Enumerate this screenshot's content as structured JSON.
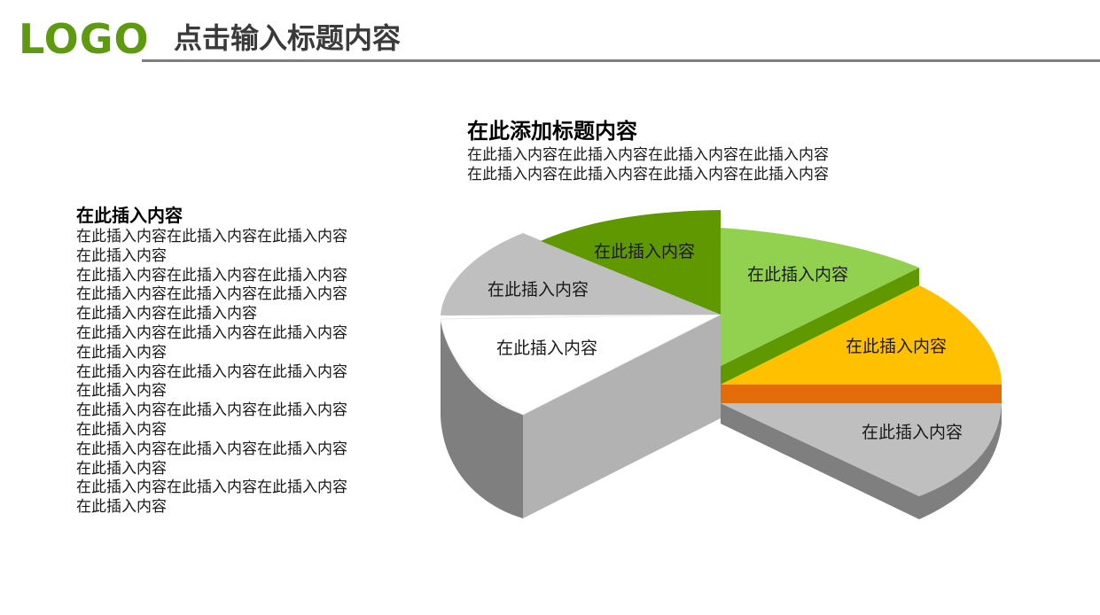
{
  "header": {
    "logo": "LOGO",
    "title": "点击输入标题内容"
  },
  "left": {
    "title": "在此插入内容",
    "lines": [
      "在此插入内容在此插入内容在此插入内容",
      "在此插入内容",
      "在此插入内容在此插入内容在此插入内容",
      "在此插入内容在此插入内容在此插入内容",
      "在此插入内容在此插入内容",
      "在此插入内容在此插入内容在此插入内容",
      "在此插入内容",
      "在此插入内容在此插入内容在此插入内容",
      "在此插入内容",
      "在此插入内容在此插入内容在此插入内容",
      "在此插入内容",
      "在此插入内容在此插入内容在此插入内容",
      "在此插入内容",
      "在此插入内容在此插入内容在此插入内容",
      "在此插入内容"
    ]
  },
  "top": {
    "title": "在此添加标题内容",
    "lines": [
      "在此插入内容在此插入内容在此插入内容在此插入内容",
      "在此插入内容在此插入内容在此插入内容在此插入内容"
    ]
  },
  "pie": {
    "labels": {
      "dark_green": "在此插入内容",
      "light_green": "在此插入内容",
      "gray_top": "在此插入内容",
      "white": "在此插入内容",
      "yellow": "在此插入内容",
      "gray_right": "在此插入内容"
    },
    "colors": {
      "dark_green": "#5f9800",
      "light_green": "#92d050",
      "yellow": "#ffc000",
      "orange": "#e36c09",
      "gray": "#bfbfbf",
      "white": "#ffffff"
    }
  }
}
